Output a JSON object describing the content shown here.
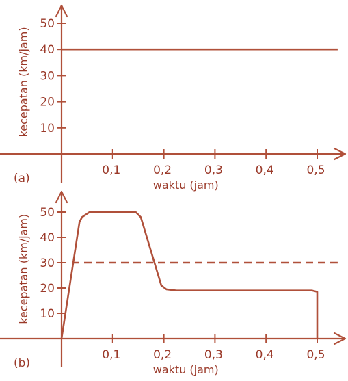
{
  "accent_color": "#b0503a",
  "chart_data": [
    {
      "type": "line",
      "panel_label": "(a)",
      "xlabel": "waktu (jam)",
      "ylabel": "kecepatan (km/jam)",
      "xlim": [
        0,
        0.55
      ],
      "ylim": [
        0,
        55
      ],
      "x_tick_values": [
        0.1,
        0.2,
        0.3,
        0.4,
        0.5
      ],
      "x_tick_labels": [
        "0,1",
        "0,2",
        "0,3",
        "0,4",
        "0,5"
      ],
      "y_tick_values": [
        10,
        20,
        30,
        40,
        50
      ],
      "y_tick_labels": [
        "10",
        "20",
        "30",
        "40",
        "50"
      ],
      "grid": false,
      "series": [
        {
          "style": "solid",
          "x": [
            0,
            0.54
          ],
          "y": [
            40,
            40
          ]
        }
      ]
    },
    {
      "type": "line",
      "panel_label": "(b)",
      "xlabel": "waktu (jam)",
      "ylabel": "kecepatan (km/jam)",
      "xlim": [
        0,
        0.55
      ],
      "ylim": [
        0,
        55
      ],
      "x_tick_values": [
        0.1,
        0.2,
        0.3,
        0.4,
        0.5
      ],
      "x_tick_labels": [
        "0,1",
        "0,2",
        "0,3",
        "0,4",
        "0,5"
      ],
      "y_tick_values": [
        10,
        20,
        30,
        40,
        50
      ],
      "y_tick_labels": [
        "10",
        "20",
        "30",
        "40",
        "50"
      ],
      "grid": false,
      "series": [
        {
          "style": "solid",
          "x": [
            0,
            0.035,
            0.04,
            0.055,
            0.145,
            0.155,
            0.195,
            0.205,
            0.225,
            0.49,
            0.5,
            0.5
          ],
          "y": [
            0,
            46,
            48,
            50,
            50,
            48,
            21,
            19.5,
            19,
            19,
            18.5,
            0
          ]
        },
        {
          "style": "dashed",
          "x": [
            0.02,
            0.54
          ],
          "y": [
            30,
            30
          ]
        }
      ]
    }
  ]
}
